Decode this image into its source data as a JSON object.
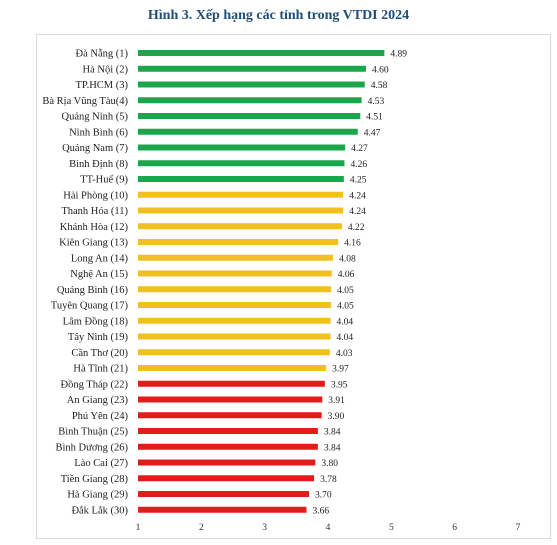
{
  "chart_data": {
    "type": "bar",
    "orientation": "horizontal",
    "title": "Hình  3. Xếp hạng các tỉnh trong VTDI 2024",
    "xlabel": "",
    "ylabel": "",
    "xlim": [
      1,
      7
    ],
    "ticks": [
      "1",
      "2",
      "3",
      "4",
      "5",
      "6",
      "7"
    ],
    "grid": false,
    "categories": [
      "Đà Nẵng (1)",
      "Hà Nội (2)",
      "TP.HCM (3)",
      "Bà Rịa Vũng Tàu(4)",
      "Quảng Ninh (5)",
      "Ninh Bình (6)",
      "Quảng Nam (7)",
      "Bình Định (8)",
      "TT-Huế (9)",
      "Hải Phòng (10)",
      "Thanh Hóa (11)",
      "Khánh Hòa (12)",
      "Kiên Giang (13)",
      "Long An (14)",
      "Nghệ An (15)",
      "Quảng Bình (16)",
      "Tuyên Quang (17)",
      "Lâm Đồng (18)",
      "Tây Ninh (19)",
      "Cần Thơ (20)",
      "Hà Tĩnh (21)",
      "Đồng Tháp (22)",
      "An Giang (23)",
      "Phú Yên (24)",
      "Bình Thuận (25)",
      "Bình Dương (26)",
      "Lào Cai (27)",
      "Tiền Giang (28)",
      "Hà Giang (29)",
      "Đắk Lắk (30)"
    ],
    "values": [
      4.89,
      4.6,
      4.58,
      4.53,
      4.51,
      4.47,
      4.27,
      4.26,
      4.25,
      4.24,
      4.24,
      4.22,
      4.16,
      4.08,
      4.06,
      4.05,
      4.05,
      4.04,
      4.04,
      4.03,
      3.97,
      3.95,
      3.91,
      3.9,
      3.84,
      3.84,
      3.8,
      3.78,
      3.7,
      3.66
    ],
    "value_labels": [
      "4.89",
      "4.60",
      "4.58",
      "4.53",
      "4.51",
      "4.47",
      "4.27",
      "4.26",
      "4.25",
      "4.24",
      "4.24",
      "4.22",
      "4.16",
      "4.08",
      "4.06",
      "4.05",
      "4.05",
      "4.04",
      "4.04",
      "4.03",
      "3.97",
      "3.95",
      "3.91",
      "3.90",
      "3.84",
      "3.84",
      "3.80",
      "3.78",
      "3.70",
      "3.66"
    ],
    "bar_colors": [
      "#1aa64a",
      "#1aa64a",
      "#1aa64a",
      "#1aa64a",
      "#1aa64a",
      "#1aa64a",
      "#1aa64a",
      "#1aa64a",
      "#1aa64a",
      "#f2c01e",
      "#f2c01e",
      "#f2c01e",
      "#f2c01e",
      "#f2c01e",
      "#f2c01e",
      "#f2c01e",
      "#f2c01e",
      "#f2c01e",
      "#f2c01e",
      "#f2c01e",
      "#f2c01e",
      "#e31b1b",
      "#e31b1b",
      "#e31b1b",
      "#e31b1b",
      "#e31b1b",
      "#e31b1b",
      "#e31b1b",
      "#e31b1b",
      "#e31b1b"
    ]
  }
}
